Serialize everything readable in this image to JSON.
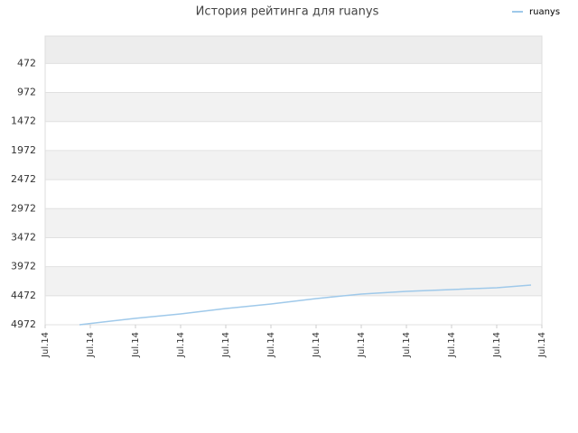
{
  "chart_data": {
    "type": "line",
    "title": "История рейтинга для ruanys",
    "x": [
      0.76,
      2,
      3,
      4,
      5,
      6,
      7,
      8,
      9,
      10,
      10.76
    ],
    "series": [
      {
        "name": "ruanys",
        "color": "#9fc9ea",
        "values": [
          4972,
          4862,
          4785,
          4692,
          4614,
          4521,
          4444,
          4397,
          4366,
          4335,
          4289
        ]
      }
    ],
    "xlim": [
      0,
      11
    ],
    "xticks": [
      {
        "value": 0,
        "label": "Jul.14"
      },
      {
        "value": 1,
        "label": "Jul.14"
      },
      {
        "value": 2,
        "label": "Jul.14"
      },
      {
        "value": 3,
        "label": "Jul.14"
      },
      {
        "value": 4,
        "label": "Jul.14"
      },
      {
        "value": 5,
        "label": "Jul.14"
      },
      {
        "value": 6,
        "label": "Jul.14"
      },
      {
        "value": 7,
        "label": "Jul.14"
      },
      {
        "value": 8,
        "label": "Jul.14"
      },
      {
        "value": 9,
        "label": "Jul.14"
      },
      {
        "value": 10,
        "label": "Jul.14"
      },
      {
        "value": 11,
        "label": "Jul.14"
      }
    ],
    "ylim": [
      4972,
      0
    ],
    "yticks": [
      472,
      972,
      1472,
      1972,
      2472,
      2972,
      3472,
      3972,
      4472,
      4972
    ],
    "grid": true,
    "legend": "top-right"
  }
}
